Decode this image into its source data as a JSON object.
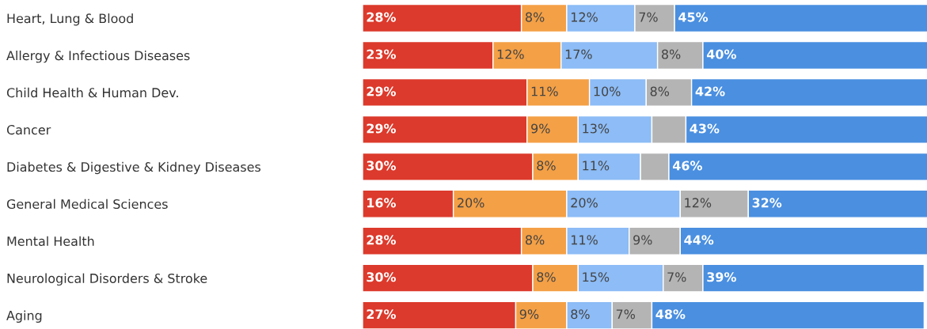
{
  "chart_data": {
    "type": "bar",
    "orientation": "horizontal",
    "stacked": true,
    "legend": false,
    "grid": false,
    "tick_labels": "y",
    "categories": [
      "Heart, Lung & Blood",
      "Allergy & Infectious Diseases",
      "Child Health & Human Dev.",
      "Cancer",
      "Diabetes & Digestive & Kidney Diseases",
      "General Medical Sciences",
      "Mental Health",
      "Neurological Disorders & Stroke",
      "Aging"
    ],
    "series": [
      {
        "color": "#dc3a2c",
        "values": [
          28,
          23,
          29,
          29,
          30,
          16,
          28,
          30,
          27
        ],
        "value_labels": [
          "28%",
          "23%",
          "29%",
          "29%",
          "30%",
          "16%",
          "28%",
          "30%",
          "27%"
        ]
      },
      {
        "color": "#f4a046",
        "values": [
          8,
          12,
          11,
          9,
          8,
          20,
          8,
          8,
          9
        ],
        "value_labels": [
          "8%",
          "12%",
          "11%",
          "9%",
          "8%",
          "20%",
          "8%",
          "8%",
          "9%"
        ]
      },
      {
        "color": "#8dbcf6",
        "values": [
          12,
          17,
          10,
          13,
          11,
          20,
          11,
          15,
          8
        ],
        "value_labels": [
          "12%",
          "17%",
          "10%",
          "13%",
          "11%",
          "20%",
          "11%",
          "15%",
          "8%"
        ]
      },
      {
        "color": "#b4b4b4",
        "values": [
          7,
          8,
          8,
          6,
          5,
          12,
          9,
          7,
          7
        ],
        "value_labels": [
          "7%",
          "8%",
          "8%",
          null,
          null,
          "12%",
          "9%",
          "7%",
          "7%"
        ]
      },
      {
        "color": "#4a8fe0",
        "values": [
          45,
          40,
          42,
          43,
          46,
          32,
          44,
          39,
          48
        ],
        "value_labels": [
          "45%",
          "40%",
          "42%",
          "43%",
          "46%",
          "32%",
          "44%",
          "39%",
          "48%"
        ]
      }
    ]
  }
}
